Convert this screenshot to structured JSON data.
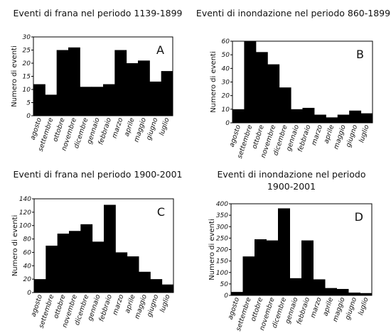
{
  "chart_data": [
    {
      "type": "bar",
      "letter": "A",
      "title": "Eventi di frana nel periodo 1139-1899",
      "ylabel": "Numero di eventi",
      "ylim": [
        0,
        30
      ],
      "yticks": [
        0,
        5,
        10,
        15,
        20,
        25,
        30
      ],
      "categories": [
        "agosto",
        "settembre",
        "ottobre",
        "novembre",
        "dicembre",
        "gennaio",
        "febbraio",
        "marzo",
        "aprile",
        "maggio",
        "giugno",
        "luglio"
      ],
      "values": [
        12,
        8,
        25,
        26,
        11,
        11,
        12,
        25,
        20,
        21,
        13,
        17
      ]
    },
    {
      "type": "bar",
      "letter": "B",
      "title": "Eventi di inondazione nel periodo 860-1899",
      "ylabel": "Numero di eventi",
      "ylim": [
        0,
        60
      ],
      "yticks": [
        0,
        10,
        20,
        30,
        40,
        50,
        60
      ],
      "categories": [
        "agosto",
        "settembre",
        "ottobre",
        "novembre",
        "dicembre",
        "gennaio",
        "febbraio",
        "marzo",
        "aprile",
        "maggio",
        "giugno",
        "luglio"
      ],
      "values": [
        10,
        60,
        52,
        43,
        26,
        10,
        11,
        6,
        4,
        6,
        9,
        7
      ]
    },
    {
      "type": "bar",
      "letter": "C",
      "title": "Eventi di frana nel periodo 1900-2001",
      "ylabel": "Numero di eventi",
      "ylim": [
        0,
        140
      ],
      "yticks": [
        0,
        20,
        40,
        60,
        80,
        100,
        120,
        140
      ],
      "categories": [
        "agosto",
        "settembre",
        "ottobre",
        "novembre",
        "dicembre",
        "gennaio",
        "febbraio",
        "marzo",
        "aprile",
        "maggio",
        "giugno",
        "luglio"
      ],
      "values": [
        20,
        70,
        88,
        92,
        102,
        76,
        131,
        60,
        54,
        31,
        20,
        12
      ]
    },
    {
      "type": "bar",
      "letter": "D",
      "title": "Eventi di inondazione nel periodo 1900-2001",
      "ylabel": "Numero di eventi",
      "ylim": [
        0,
        400
      ],
      "yticks": [
        0,
        50,
        100,
        150,
        200,
        250,
        300,
        350,
        400
      ],
      "categories": [
        "agosto",
        "settembre",
        "ottobre",
        "novembre",
        "dicembre",
        "gennaio",
        "febbraio",
        "marzo",
        "aprile",
        "maggio",
        "giugno",
        "luglio"
      ],
      "values": [
        15,
        170,
        245,
        240,
        380,
        75,
        240,
        70,
        32,
        28,
        12,
        10
      ]
    }
  ]
}
